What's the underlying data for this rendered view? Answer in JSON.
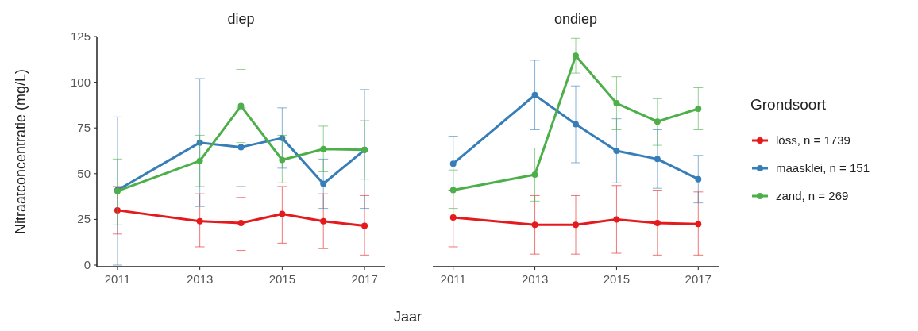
{
  "chart_data": [
    {
      "type": "line",
      "title": "diep",
      "xlabel": "Jaar",
      "ylabel": "Nitraatconcentratie (mg/L)",
      "x": [
        2011,
        2013,
        2014,
        2015,
        2016,
        2017
      ],
      "xlim": [
        2010.5,
        2017.5
      ],
      "xticks": [
        2011,
        2013,
        2015,
        2017
      ],
      "ylim": [
        0,
        125
      ],
      "yticks": [
        0,
        25,
        50,
        75,
        100,
        125
      ],
      "marker": "circle",
      "line_style": "solid",
      "grid": false,
      "legend": false,
      "series": [
        {
          "color": "#e41a1c",
          "values": [
            30,
            24,
            23,
            28,
            24,
            21.5
          ],
          "errors": [
            [
              17,
              43
            ],
            [
              10,
              39
            ],
            [
              8,
              37
            ],
            [
              12,
              43
            ],
            [
              9,
              39
            ],
            [
              5.5,
              38
            ]
          ]
        },
        {
          "color": "#377eb8",
          "values": [
            41,
            67,
            64.5,
            69.5,
            44.5,
            63
          ],
          "errors": [
            [
              0,
              81
            ],
            [
              32,
              102
            ],
            [
              43,
              86
            ],
            [
              53,
              86
            ],
            [
              31,
              58
            ],
            [
              31,
              96
            ]
          ]
        },
        {
          "color": "#4daf4a",
          "values": [
            40.5,
            57,
            87,
            57.5,
            63.5,
            63
          ],
          "errors": [
            [
              22,
              58
            ],
            [
              43,
              71
            ],
            [
              67,
              107
            ],
            [
              45,
              71
            ],
            [
              51,
              76
            ],
            [
              47,
              79
            ]
          ]
        }
      ]
    },
    {
      "type": "line",
      "title": "ondiep",
      "x": [
        2011,
        2013,
        2014,
        2015,
        2016,
        2017
      ],
      "xlim": [
        2010.5,
        2017.5
      ],
      "xticks": [
        2011,
        2013,
        2015,
        2017
      ],
      "ylim": [
        0,
        125
      ],
      "yticks": [
        0,
        25,
        50,
        75,
        100,
        125
      ],
      "tick_labels": "x",
      "marker": "circle",
      "line_style": "solid",
      "grid": false,
      "legend": "right",
      "legend_title": "Grondsoort",
      "series": [
        {
          "name": "löss, n = 1739",
          "color": "#e41a1c",
          "values": [
            26,
            22,
            22,
            25,
            23,
            22.5
          ],
          "errors": [
            [
              10,
              41
            ],
            [
              6,
              38
            ],
            [
              6,
              38
            ],
            [
              6.5,
              43.5
            ],
            [
              5.5,
              41
            ],
            [
              5.5,
              40
            ]
          ]
        },
        {
          "name": "maasklei, n = 151",
          "color": "#377eb8",
          "values": [
            55.5,
            93,
            77,
            62.5,
            58,
            47
          ],
          "errors": [
            [
              41,
              70.5
            ],
            [
              74,
              112
            ],
            [
              56,
              98
            ],
            [
              45,
              80
            ],
            [
              42,
              74
            ],
            [
              34,
              60
            ]
          ]
        },
        {
          "name": "zand, n = 269",
          "color": "#4daf4a",
          "values": [
            41,
            49.5,
            114.5,
            88.5,
            78.5,
            85.5
          ],
          "errors": [
            [
              31,
              52
            ],
            [
              35,
              64
            ],
            [
              105,
              124
            ],
            [
              74,
              103
            ],
            [
              65.5,
              91
            ],
            [
              74,
              97
            ]
          ]
        }
      ]
    }
  ]
}
